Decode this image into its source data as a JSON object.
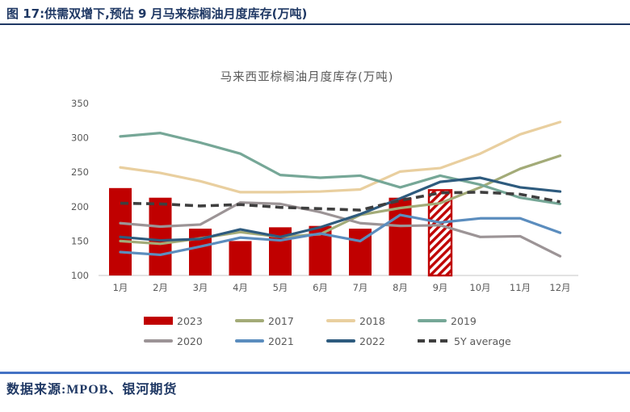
{
  "report": {
    "figure_title": "图 17:供需双增下,预估 9 月马来棕榈油月度库存(万吨)",
    "source_note": "数据来源:MPOB、银河期货"
  },
  "chart_data": {
    "type": "bar",
    "subtype": "bar + line combo, monthly seasonal comparison",
    "title": "马来西亚棕榈油月度库存(万吨)",
    "unit": "万吨",
    "categories": [
      "1月",
      "2月",
      "3月",
      "4月",
      "5月",
      "6月",
      "7月",
      "8月",
      "9月",
      "10月",
      "11月",
      "12月"
    ],
    "ylim": [
      100,
      350
    ],
    "yticks": [
      100,
      150,
      200,
      250,
      300,
      350
    ],
    "grid": false,
    "legend_position": "bottom",
    "axis_color": "#595959",
    "baseline_color": "#D9D9D9",
    "bar_series": {
      "name": "2023",
      "color": "#C00000",
      "values": [
        227,
        213,
        168,
        150,
        170,
        172,
        168,
        213,
        224
      ],
      "last_value_estimated": true,
      "estimated_style": "white fill with red diagonal hatch (9月 forecast)"
    },
    "line_series": [
      {
        "name": "2017",
        "color": "#A3AB78",
        "dashed": false,
        "values": [
          150,
          146,
          154,
          163,
          156,
          160,
          188,
          198,
          205,
          228,
          255,
          274
        ]
      },
      {
        "name": "2018",
        "color": "#E9CF9F",
        "dashed": false,
        "values": [
          257,
          249,
          237,
          221,
          221,
          222,
          225,
          251,
          256,
          277,
          305,
          323
        ]
      },
      {
        "name": "2019",
        "color": "#76A797",
        "dashed": false,
        "values": [
          302,
          307,
          293,
          277,
          246,
          242,
          245,
          228,
          245,
          232,
          213,
          204
        ]
      },
      {
        "name": "2020",
        "color": "#9C9496",
        "dashed": false,
        "values": [
          176,
          171,
          174,
          206,
          204,
          192,
          176,
          172,
          173,
          156,
          157,
          128
        ]
      },
      {
        "name": "2021",
        "color": "#5B8DBE",
        "dashed": false,
        "values": [
          134,
          130,
          142,
          155,
          151,
          161,
          150,
          188,
          177,
          183,
          183,
          162
        ]
      },
      {
        "name": "2022",
        "color": "#2E5B7E",
        "dashed": false,
        "values": [
          156,
          151,
          153,
          167,
          156,
          170,
          189,
          212,
          236,
          242,
          228,
          222
        ]
      },
      {
        "name": "5Y average",
        "color": "#3F3F3F",
        "dashed": true,
        "values": [
          205,
          204,
          201,
          203,
          199,
          197,
          195,
          209,
          220,
          221,
          218,
          207
        ]
      }
    ]
  }
}
